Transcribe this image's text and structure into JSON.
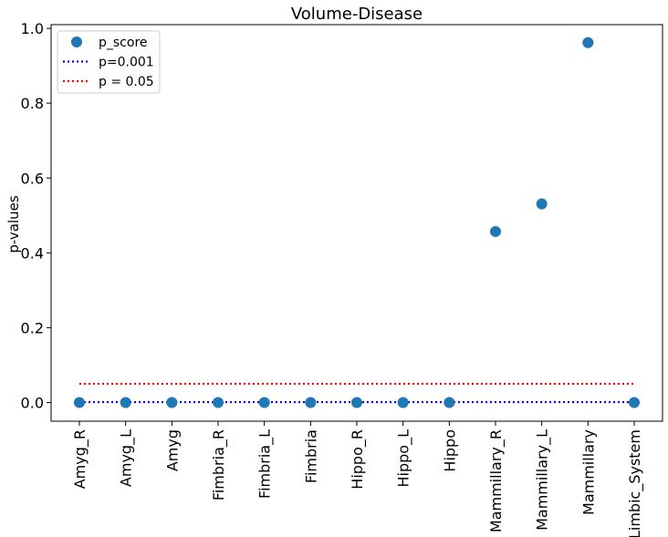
{
  "chart_data": {
    "type": "scatter",
    "title": "Volume-Disease",
    "xlabel": "",
    "ylabel": "p-values",
    "categories": [
      "Amyg_R",
      "Amyg_L",
      "Amyg",
      "Fimbria_R",
      "Fimbria_L",
      "Fimbria",
      "Hippo_R",
      "Hippo_L",
      "Hippo",
      "Mammillary_R",
      "Mammillary_L",
      "Mammillary",
      "Limbic_System"
    ],
    "series": [
      {
        "name": "p_score",
        "style": "marker",
        "color": "#1f77b4",
        "values": [
          0.0,
          0.0,
          0.0,
          0.0,
          0.0,
          0.0,
          0.0,
          0.0,
          0.0,
          0.457,
          0.531,
          0.962,
          0.0
        ]
      },
      {
        "name": "p=0.001",
        "style": "dotted-line",
        "color": "#0000ff",
        "value": 0.001
      },
      {
        "name": "p = 0.05",
        "style": "dotted-line",
        "color": "#ff0000",
        "value": 0.05
      }
    ],
    "yticks": [
      "0.0",
      "0.2",
      "0.4",
      "0.6",
      "0.8",
      "1.0"
    ],
    "ytick_values": [
      0.0,
      0.2,
      0.4,
      0.6,
      0.8,
      1.0
    ],
    "ylim": [
      -0.05,
      1.01
    ],
    "grid": false,
    "legend_position": "top-left"
  }
}
